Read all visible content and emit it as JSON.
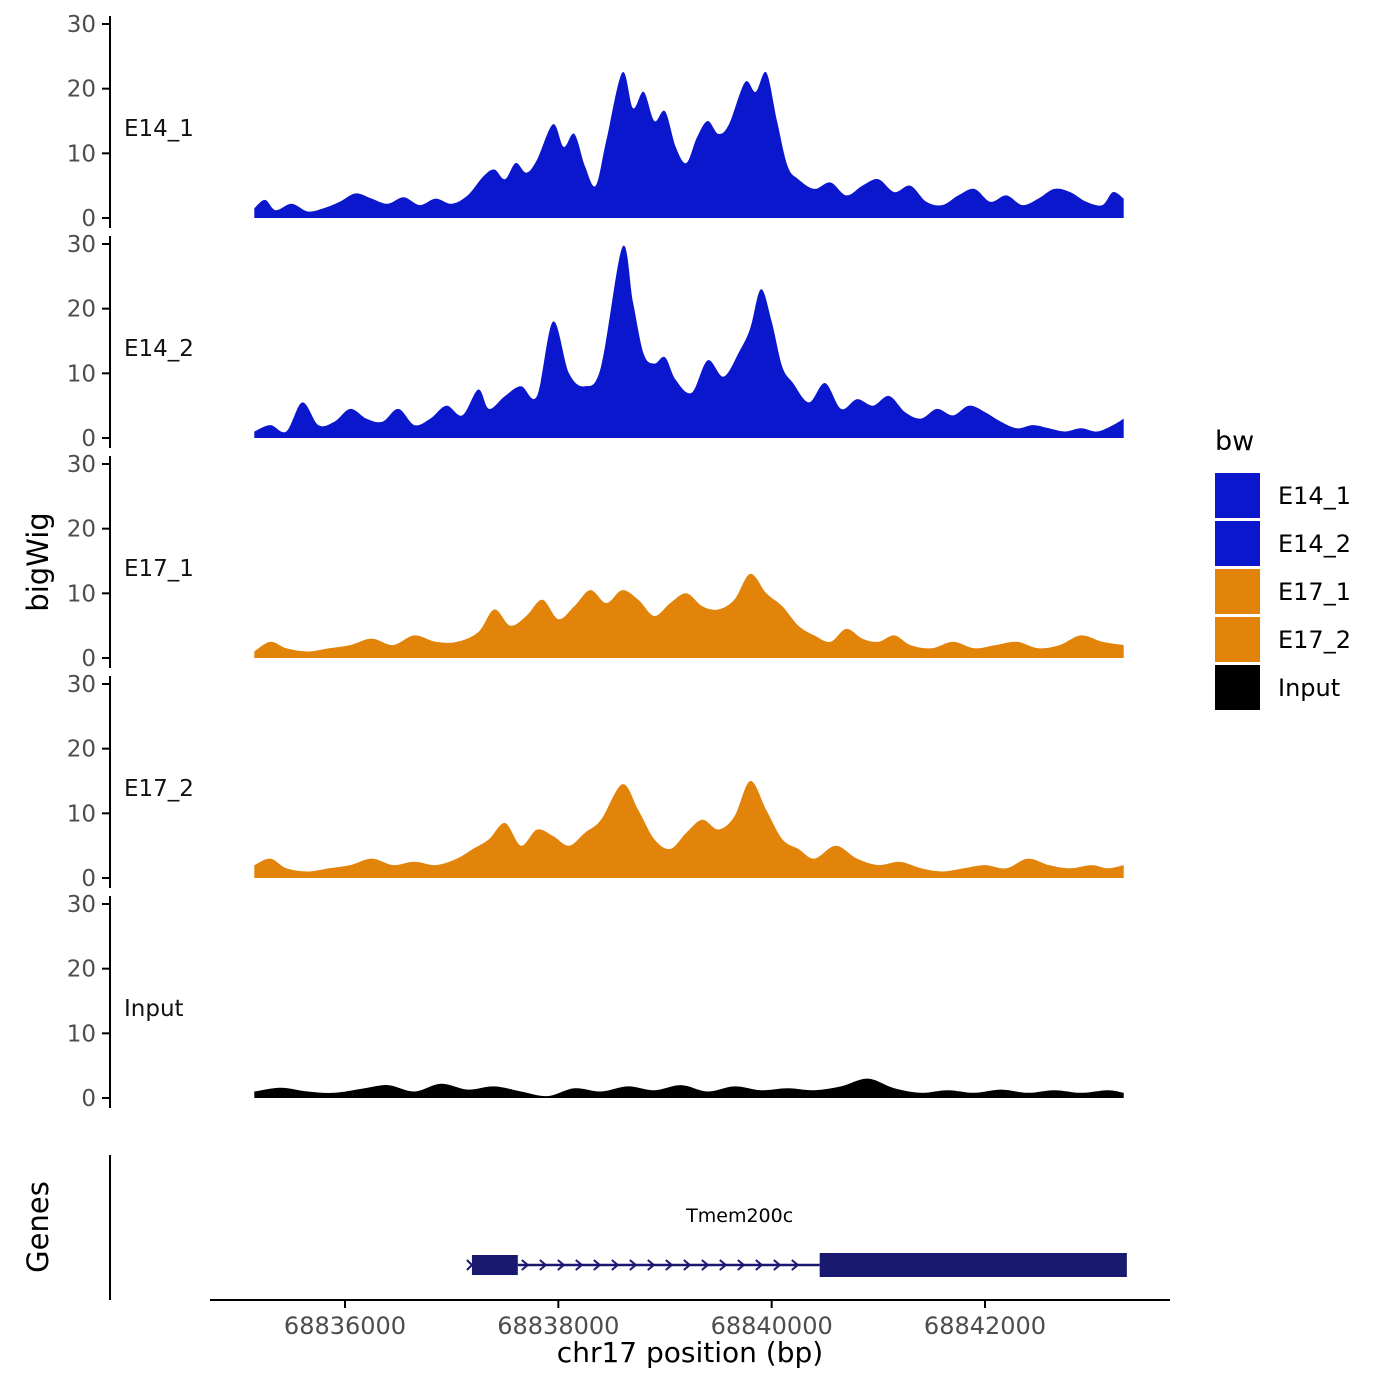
{
  "figure": {
    "y_axis_label": "bigWig",
    "genes_axis_label": "Genes",
    "x_axis_label": "chr17 position (bp)"
  },
  "legend": {
    "title": "bw",
    "items": [
      {
        "label": "E14_1",
        "color": "#0b17cd"
      },
      {
        "label": "E14_2",
        "color": "#0b17cd"
      },
      {
        "label": "E17_1",
        "color": "#e2830a"
      },
      {
        "label": "E17_2",
        "color": "#e2830a"
      },
      {
        "label": "Input",
        "color": "#000000"
      }
    ]
  },
  "chart_data": {
    "type": "area",
    "title": "",
    "xlabel": "chr17 position (bp)",
    "ylabel": "bigWig",
    "x_range": [
      68834700,
      68843750
    ],
    "x_ticks": [
      68836000,
      68838000,
      68840000,
      68842000
    ],
    "y_ticks": [
      0,
      10,
      20,
      30
    ],
    "ylim": [
      0,
      32
    ],
    "grid": false,
    "legend_position": "right",
    "colors": {
      "blue": "#0b17cd",
      "orange": "#e2830a",
      "black": "#000000",
      "gene": "#191970",
      "tick_text": "#4d4d4d"
    },
    "tracks": [
      {
        "name": "E14_1",
        "color": "#0b17cd",
        "points": [
          [
            68835150,
            1.5
          ],
          [
            68835250,
            2.8
          ],
          [
            68835350,
            1.2
          ],
          [
            68835500,
            2.2
          ],
          [
            68835650,
            1.0
          ],
          [
            68835800,
            1.5
          ],
          [
            68835950,
            2.5
          ],
          [
            68836100,
            3.8
          ],
          [
            68836250,
            3.0
          ],
          [
            68836400,
            2.2
          ],
          [
            68836550,
            3.2
          ],
          [
            68836700,
            2.0
          ],
          [
            68836850,
            3.0
          ],
          [
            68837000,
            2.2
          ],
          [
            68837150,
            3.5
          ],
          [
            68837300,
            6.5
          ],
          [
            68837400,
            7.5
          ],
          [
            68837500,
            6.0
          ],
          [
            68837600,
            8.5
          ],
          [
            68837700,
            7.0
          ],
          [
            68837800,
            9.0
          ],
          [
            68837950,
            14.5
          ],
          [
            68838050,
            11.0
          ],
          [
            68838150,
            13.0
          ],
          [
            68838250,
            8.0
          ],
          [
            68838350,
            5.0
          ],
          [
            68838450,
            12.0
          ],
          [
            68838600,
            22.5
          ],
          [
            68838700,
            17.0
          ],
          [
            68838800,
            19.5
          ],
          [
            68838900,
            15.0
          ],
          [
            68839000,
            16.5
          ],
          [
            68839100,
            11.0
          ],
          [
            68839200,
            8.5
          ],
          [
            68839300,
            12.5
          ],
          [
            68839400,
            15.0
          ],
          [
            68839500,
            13.0
          ],
          [
            68839600,
            14.5
          ],
          [
            68839750,
            21.0
          ],
          [
            68839850,
            19.5
          ],
          [
            68839950,
            22.5
          ],
          [
            68840050,
            15.0
          ],
          [
            68840150,
            8.0
          ],
          [
            68840250,
            6.0
          ],
          [
            68840400,
            4.5
          ],
          [
            68840550,
            5.5
          ],
          [
            68840700,
            3.5
          ],
          [
            68840850,
            5.0
          ],
          [
            68841000,
            6.0
          ],
          [
            68841150,
            4.0
          ],
          [
            68841300,
            5.0
          ],
          [
            68841450,
            2.5
          ],
          [
            68841600,
            2.0
          ],
          [
            68841750,
            3.5
          ],
          [
            68841900,
            4.5
          ],
          [
            68842050,
            2.5
          ],
          [
            68842200,
            3.5
          ],
          [
            68842350,
            2.0
          ],
          [
            68842500,
            3.0
          ],
          [
            68842650,
            4.5
          ],
          [
            68842800,
            4.0
          ],
          [
            68842950,
            2.5
          ],
          [
            68843100,
            2.0
          ],
          [
            68843200,
            4.0
          ],
          [
            68843300,
            3.0
          ]
        ]
      },
      {
        "name": "E14_2",
        "color": "#0b17cd",
        "points": [
          [
            68835150,
            1.0
          ],
          [
            68835300,
            2.0
          ],
          [
            68835450,
            1.0
          ],
          [
            68835600,
            5.5
          ],
          [
            68835750,
            2.0
          ],
          [
            68835900,
            2.5
          ],
          [
            68836050,
            4.5
          ],
          [
            68836200,
            3.0
          ],
          [
            68836350,
            2.5
          ],
          [
            68836500,
            4.5
          ],
          [
            68836650,
            2.0
          ],
          [
            68836800,
            3.0
          ],
          [
            68836950,
            5.0
          ],
          [
            68837100,
            3.5
          ],
          [
            68837250,
            7.5
          ],
          [
            68837350,
            4.5
          ],
          [
            68837500,
            6.5
          ],
          [
            68837650,
            8.0
          ],
          [
            68837800,
            6.5
          ],
          [
            68837950,
            18.0
          ],
          [
            68838100,
            10.0
          ],
          [
            68838250,
            8.0
          ],
          [
            68838400,
            11.0
          ],
          [
            68838600,
            29.5
          ],
          [
            68838700,
            21.0
          ],
          [
            68838800,
            13.0
          ],
          [
            68838900,
            11.5
          ],
          [
            68839000,
            12.5
          ],
          [
            68839100,
            9.0
          ],
          [
            68839250,
            7.0
          ],
          [
            68839400,
            12.0
          ],
          [
            68839550,
            9.5
          ],
          [
            68839700,
            13.5
          ],
          [
            68839800,
            17.0
          ],
          [
            68839900,
            23.0
          ],
          [
            68840000,
            18.0
          ],
          [
            68840100,
            11.0
          ],
          [
            68840200,
            8.5
          ],
          [
            68840350,
            5.5
          ],
          [
            68840500,
            8.5
          ],
          [
            68840650,
            4.5
          ],
          [
            68840800,
            6.0
          ],
          [
            68840950,
            5.0
          ],
          [
            68841100,
            6.5
          ],
          [
            68841250,
            4.0
          ],
          [
            68841400,
            3.0
          ],
          [
            68841550,
            4.5
          ],
          [
            68841700,
            3.5
          ],
          [
            68841850,
            5.0
          ],
          [
            68842000,
            4.0
          ],
          [
            68842150,
            2.5
          ],
          [
            68842300,
            1.5
          ],
          [
            68842450,
            2.0
          ],
          [
            68842600,
            1.5
          ],
          [
            68842750,
            1.0
          ],
          [
            68842900,
            1.5
          ],
          [
            68843050,
            1.0
          ],
          [
            68843200,
            2.0
          ],
          [
            68843300,
            3.0
          ]
        ]
      },
      {
        "name": "E17_1",
        "color": "#e2830a",
        "points": [
          [
            68835150,
            1.0
          ],
          [
            68835300,
            2.5
          ],
          [
            68835450,
            1.5
          ],
          [
            68835650,
            1.0
          ],
          [
            68835850,
            1.5
          ],
          [
            68836050,
            2.0
          ],
          [
            68836250,
            3.0
          ],
          [
            68836450,
            2.0
          ],
          [
            68836650,
            3.5
          ],
          [
            68836850,
            2.5
          ],
          [
            68837050,
            2.5
          ],
          [
            68837250,
            4.0
          ],
          [
            68837400,
            7.5
          ],
          [
            68837550,
            5.0
          ],
          [
            68837700,
            6.5
          ],
          [
            68837850,
            9.0
          ],
          [
            68838000,
            6.0
          ],
          [
            68838150,
            8.0
          ],
          [
            68838300,
            10.5
          ],
          [
            68838450,
            8.5
          ],
          [
            68838600,
            10.5
          ],
          [
            68838750,
            9.0
          ],
          [
            68838900,
            6.5
          ],
          [
            68839050,
            8.5
          ],
          [
            68839200,
            10.0
          ],
          [
            68839350,
            8.0
          ],
          [
            68839500,
            7.5
          ],
          [
            68839650,
            9.0
          ],
          [
            68839800,
            13.0
          ],
          [
            68839950,
            10.0
          ],
          [
            68840100,
            8.0
          ],
          [
            68840250,
            5.0
          ],
          [
            68840400,
            3.5
          ],
          [
            68840550,
            2.5
          ],
          [
            68840700,
            4.5
          ],
          [
            68840850,
            3.0
          ],
          [
            68841000,
            2.5
          ],
          [
            68841150,
            3.5
          ],
          [
            68841300,
            2.0
          ],
          [
            68841500,
            1.5
          ],
          [
            68841700,
            2.5
          ],
          [
            68841900,
            1.5
          ],
          [
            68842100,
            2.0
          ],
          [
            68842300,
            2.5
          ],
          [
            68842500,
            1.5
          ],
          [
            68842700,
            2.0
          ],
          [
            68842900,
            3.5
          ],
          [
            68843100,
            2.5
          ],
          [
            68843300,
            2.0
          ]
        ]
      },
      {
        "name": "E17_2",
        "color": "#e2830a",
        "points": [
          [
            68835150,
            2.0
          ],
          [
            68835300,
            3.0
          ],
          [
            68835450,
            1.5
          ],
          [
            68835650,
            1.0
          ],
          [
            68835850,
            1.5
          ],
          [
            68836050,
            2.0
          ],
          [
            68836250,
            3.0
          ],
          [
            68836450,
            2.0
          ],
          [
            68836650,
            2.5
          ],
          [
            68836850,
            2.0
          ],
          [
            68837050,
            3.0
          ],
          [
            68837200,
            4.5
          ],
          [
            68837350,
            6.0
          ],
          [
            68837500,
            8.5
          ],
          [
            68837650,
            5.0
          ],
          [
            68837800,
            7.5
          ],
          [
            68837950,
            6.5
          ],
          [
            68838100,
            5.0
          ],
          [
            68838250,
            7.0
          ],
          [
            68838400,
            9.0
          ],
          [
            68838600,
            14.5
          ],
          [
            68838750,
            10.5
          ],
          [
            68838900,
            6.0
          ],
          [
            68839050,
            4.5
          ],
          [
            68839200,
            7.0
          ],
          [
            68839350,
            9.0
          ],
          [
            68839500,
            7.5
          ],
          [
            68839650,
            9.5
          ],
          [
            68839800,
            15.0
          ],
          [
            68839950,
            10.5
          ],
          [
            68840100,
            6.0
          ],
          [
            68840250,
            4.5
          ],
          [
            68840400,
            3.0
          ],
          [
            68840600,
            5.0
          ],
          [
            68840800,
            3.0
          ],
          [
            68841000,
            2.0
          ],
          [
            68841200,
            2.5
          ],
          [
            68841400,
            1.5
          ],
          [
            68841600,
            1.0
          ],
          [
            68841800,
            1.5
          ],
          [
            68842000,
            2.0
          ],
          [
            68842200,
            1.5
          ],
          [
            68842400,
            3.0
          ],
          [
            68842600,
            2.0
          ],
          [
            68842800,
            1.5
          ],
          [
            68843000,
            2.0
          ],
          [
            68843150,
            1.5
          ],
          [
            68843300,
            2.0
          ]
        ]
      },
      {
        "name": "Input",
        "color": "#000000",
        "points": [
          [
            68835150,
            1.0
          ],
          [
            68835400,
            1.6
          ],
          [
            68835650,
            1.0
          ],
          [
            68835900,
            0.8
          ],
          [
            68836150,
            1.4
          ],
          [
            68836400,
            2.0
          ],
          [
            68836650,
            1.0
          ],
          [
            68836900,
            2.2
          ],
          [
            68837150,
            1.3
          ],
          [
            68837400,
            1.8
          ],
          [
            68837650,
            1.0
          ],
          [
            68837900,
            0.3
          ],
          [
            68838150,
            1.5
          ],
          [
            68838400,
            1.0
          ],
          [
            68838650,
            1.8
          ],
          [
            68838900,
            1.2
          ],
          [
            68839150,
            2.0
          ],
          [
            68839400,
            1.0
          ],
          [
            68839650,
            1.8
          ],
          [
            68839900,
            1.2
          ],
          [
            68840150,
            1.5
          ],
          [
            68840400,
            1.2
          ],
          [
            68840650,
            1.8
          ],
          [
            68840900,
            3.0
          ],
          [
            68841150,
            1.5
          ],
          [
            68841400,
            0.8
          ],
          [
            68841650,
            1.2
          ],
          [
            68841900,
            0.8
          ],
          [
            68842150,
            1.3
          ],
          [
            68842400,
            0.8
          ],
          [
            68842650,
            1.2
          ],
          [
            68842900,
            0.8
          ],
          [
            68843150,
            1.2
          ],
          [
            68843300,
            0.8
          ]
        ]
      }
    ],
    "genes": {
      "label": "Tmem200c",
      "label_pos": 68839700,
      "color": "#191970",
      "strand": "+",
      "exons": [
        [
          68837190,
          68837620
        ],
        [
          68840450,
          68843330
        ]
      ],
      "intron": [
        68837620,
        68840450
      ]
    }
  }
}
